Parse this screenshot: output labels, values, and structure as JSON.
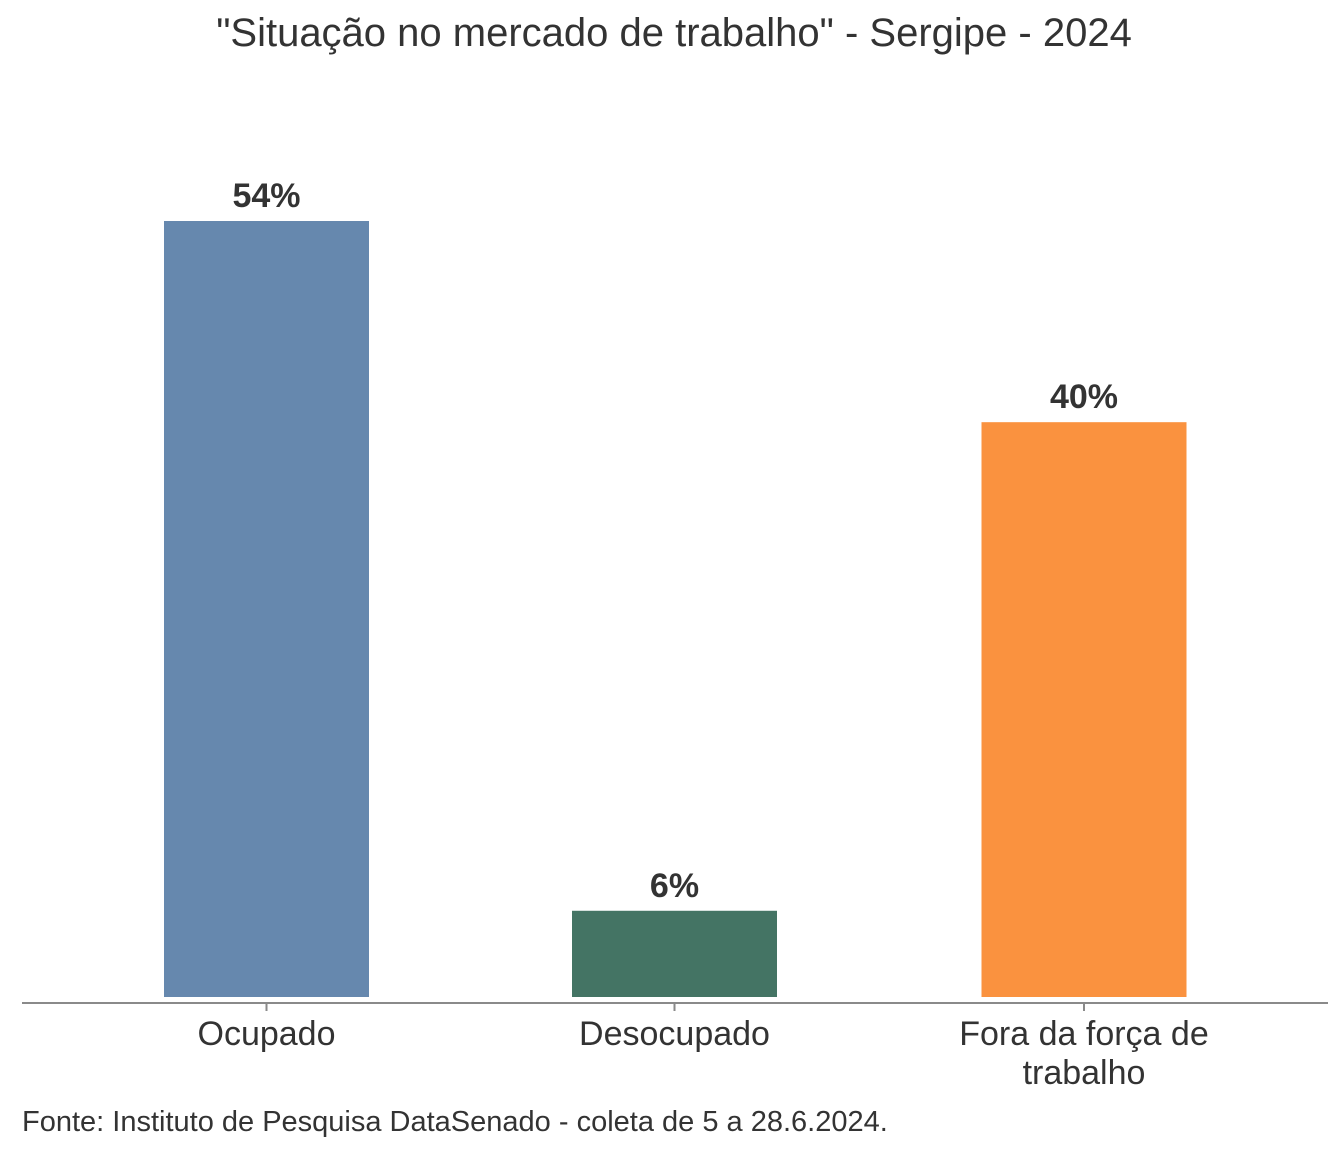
{
  "chart_data": {
    "type": "bar",
    "title": "\"Situação no mercado de trabalho\" - Sergipe - 2024",
    "categories": [
      "Ocupado",
      "Desocupado",
      "Fora da força de trabalho"
    ],
    "category_lines": [
      [
        "Ocupado"
      ],
      [
        "Desocupado"
      ],
      [
        "Fora da força de",
        "trabalho"
      ]
    ],
    "values": [
      54,
      6,
      40
    ],
    "value_labels": [
      "54%",
      "6%",
      "40%"
    ],
    "colors": [
      "#6688ae",
      "#447464",
      "#fa923f"
    ],
    "ylim": [
      0,
      54
    ],
    "grid": false,
    "legend": "none",
    "source": "Fonte: Instituto de Pesquisa DataSenado - coleta de 5 a 28.6.2024."
  }
}
